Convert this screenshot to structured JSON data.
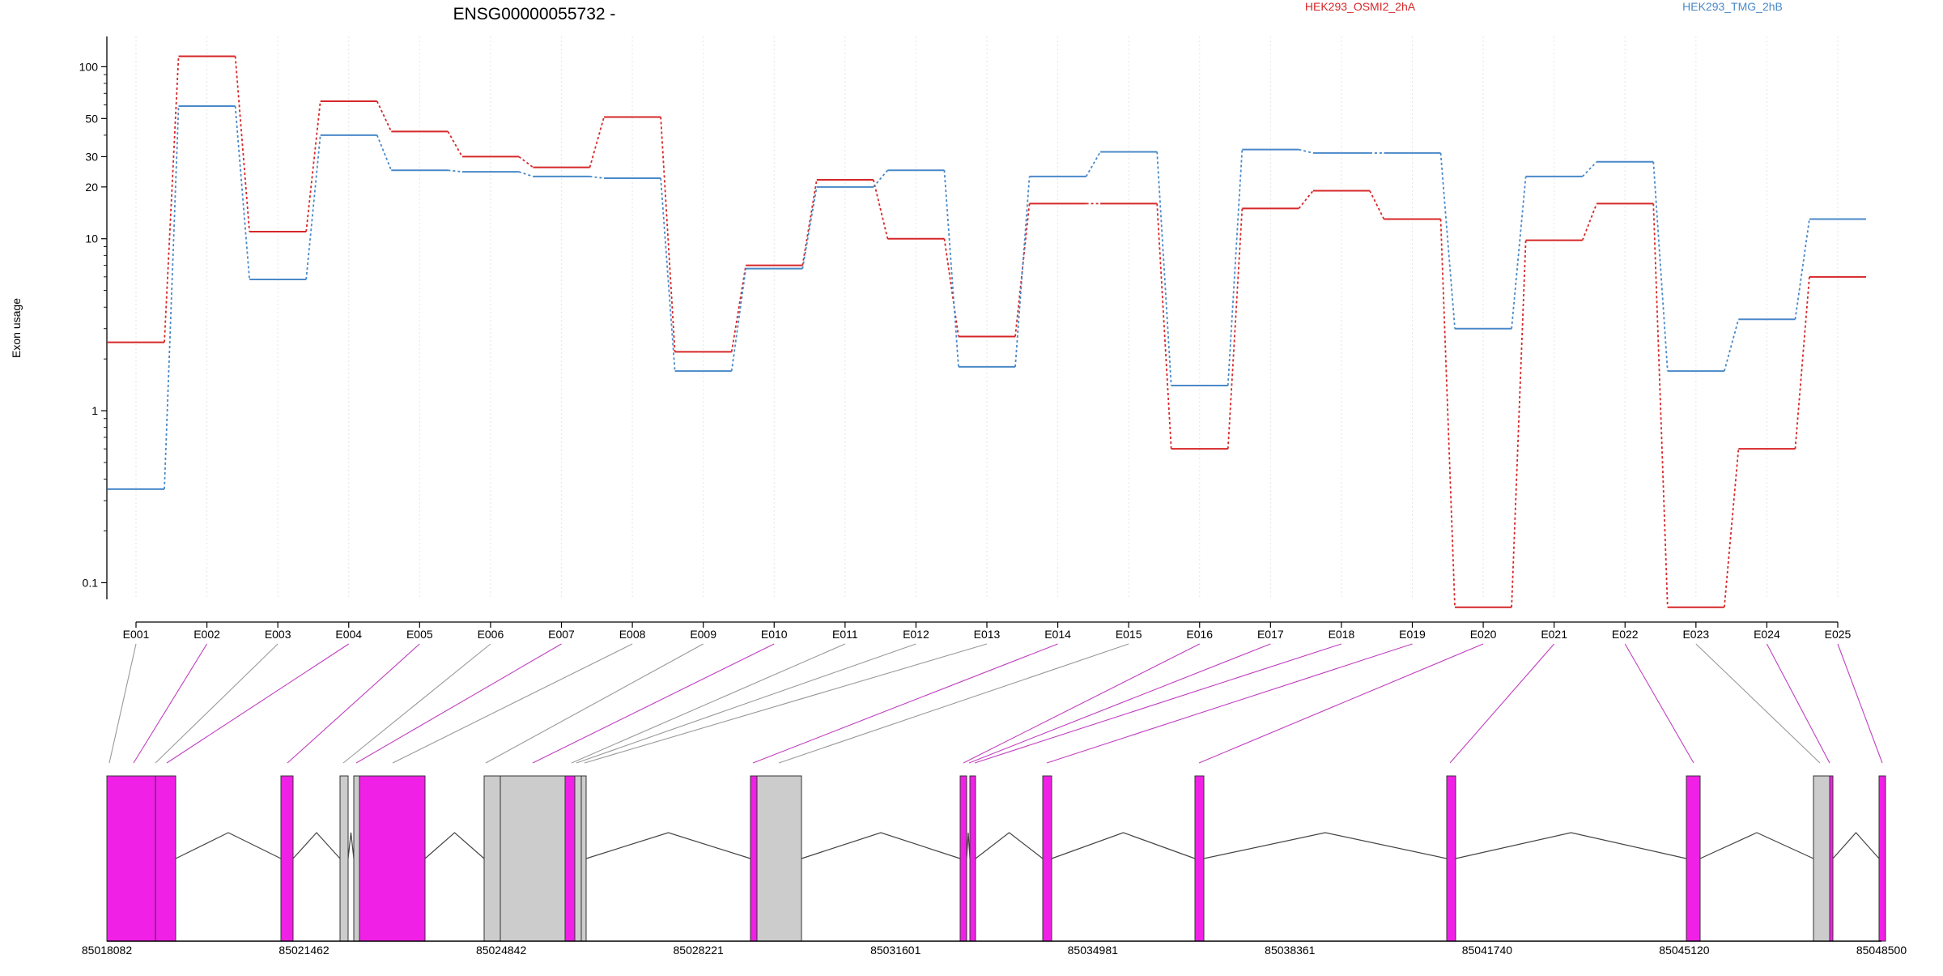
{
  "chart_data": {
    "type": "line",
    "title": "ENSG00000055732 -",
    "xlabel": "",
    "ylabel": "Exon usage",
    "y_scale": "log",
    "ylim": [
      0.08,
      150
    ],
    "y_ticks": [
      {
        "value": 0.1,
        "label": "0.1"
      },
      {
        "value": 1,
        "label": "1"
      },
      {
        "value": 10,
        "label": "10"
      },
      {
        "value": 20,
        "label": "20"
      },
      {
        "value": 30,
        "label": "30"
      },
      {
        "value": 50,
        "label": "50"
      },
      {
        "value": 100,
        "label": "100"
      }
    ],
    "grid": "vertical dotted at each exon",
    "categories": [
      "E001",
      "E002",
      "E003",
      "E004",
      "E005",
      "E006",
      "E007",
      "E008",
      "E009",
      "E010",
      "E011",
      "E012",
      "E013",
      "E014",
      "E015",
      "E016",
      "E017",
      "E018",
      "E019",
      "E020",
      "E021",
      "E022",
      "E023",
      "E024",
      "E025"
    ],
    "series": [
      {
        "name": "HEK293_OSMI2_2hA",
        "color": "#d62728",
        "values": [
          2.5,
          115,
          11,
          63,
          42,
          30,
          26,
          51,
          2.2,
          7.0,
          22,
          10,
          2.7,
          16,
          16,
          0.6,
          15,
          19,
          13,
          0.072,
          9.8,
          16,
          0.072,
          0.6,
          6.0
        ]
      },
      {
        "name": "HEK293_TMG_2hB",
        "color": "#4a89c8",
        "values": [
          0.35,
          59,
          5.8,
          40,
          25,
          24.5,
          23,
          22.5,
          1.7,
          6.7,
          20,
          25,
          1.8,
          23,
          32,
          1.4,
          33,
          31.5,
          31.5,
          3.0,
          23,
          28,
          1.7,
          3.4,
          13
        ]
      }
    ],
    "legend": {
      "placement": "top"
    },
    "gene_model": {
      "coordinate_labels": [
        "85018082",
        "85021462",
        "85024842",
        "85028221",
        "85031601",
        "85034981",
        "85038361",
        "85041740",
        "85045120",
        "85048500"
      ],
      "exon_fill": {
        "differential": "#f020e6",
        "other": "#cccccc"
      }
    }
  }
}
